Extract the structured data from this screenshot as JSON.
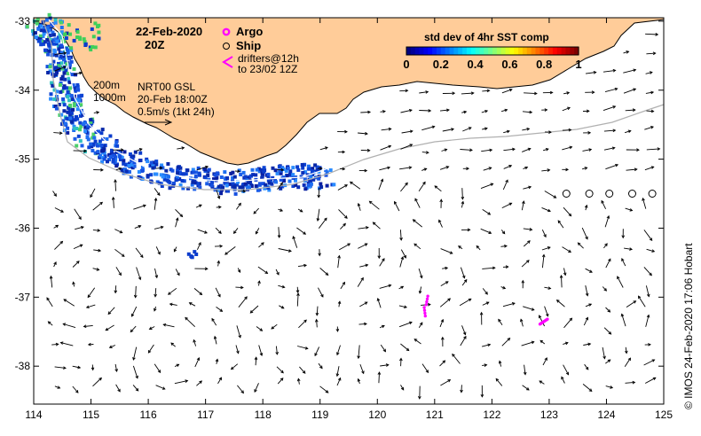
{
  "header": {
    "date": "22-Feb-2020",
    "time": "20Z"
  },
  "legend": {
    "argo_label": "Argo",
    "ship_label": "Ship",
    "drifters_line1": "drifters@12h",
    "drifters_line2": "to 23/02 12Z",
    "argo_color": "#ff00ff",
    "drifter_color": "#ff00ff"
  },
  "contours": {
    "label_200": "200m",
    "label_1000": "1000m"
  },
  "current_info": {
    "line1": "NRT00 GSL",
    "line2": "20-Feb 18:00Z",
    "line3": "0.5m/s (1kt 24h)"
  },
  "colorbar": {
    "title": "std dev of 4hr SST comp",
    "ticks": [
      "0",
      "0.2",
      "0.4",
      "0.6",
      "0.8",
      "1"
    ],
    "colors": [
      "#00007f",
      "#0000ff",
      "#007fff",
      "#00ffff",
      "#7fff7f",
      "#ffff00",
      "#ff7f00",
      "#ff0000",
      "#7f0000"
    ]
  },
  "axes": {
    "x_ticks": [
      "114",
      "115",
      "116",
      "117",
      "118",
      "119",
      "120",
      "121",
      "122",
      "123",
      "124",
      "125"
    ],
    "y_ticks": [
      "-33",
      "-34",
      "-35",
      "-36",
      "-37",
      "-38"
    ]
  },
  "credit": "© IMOS 24-Feb-2020 17:06 Hobart",
  "colors": {
    "land": "#ffcc99",
    "coast": "#000000",
    "sst_base": "#0a3bc4"
  },
  "markers": {
    "ship_positions": [
      [
        123.3,
        -35.5
      ],
      [
        123.7,
        -35.5
      ],
      [
        124.05,
        -35.5
      ],
      [
        124.45,
        -35.5
      ],
      [
        124.8,
        -35.5
      ]
    ],
    "argo_positions": [
      [
        120.85,
        -37.15
      ],
      [
        122.9,
        -37.35
      ]
    ]
  }
}
